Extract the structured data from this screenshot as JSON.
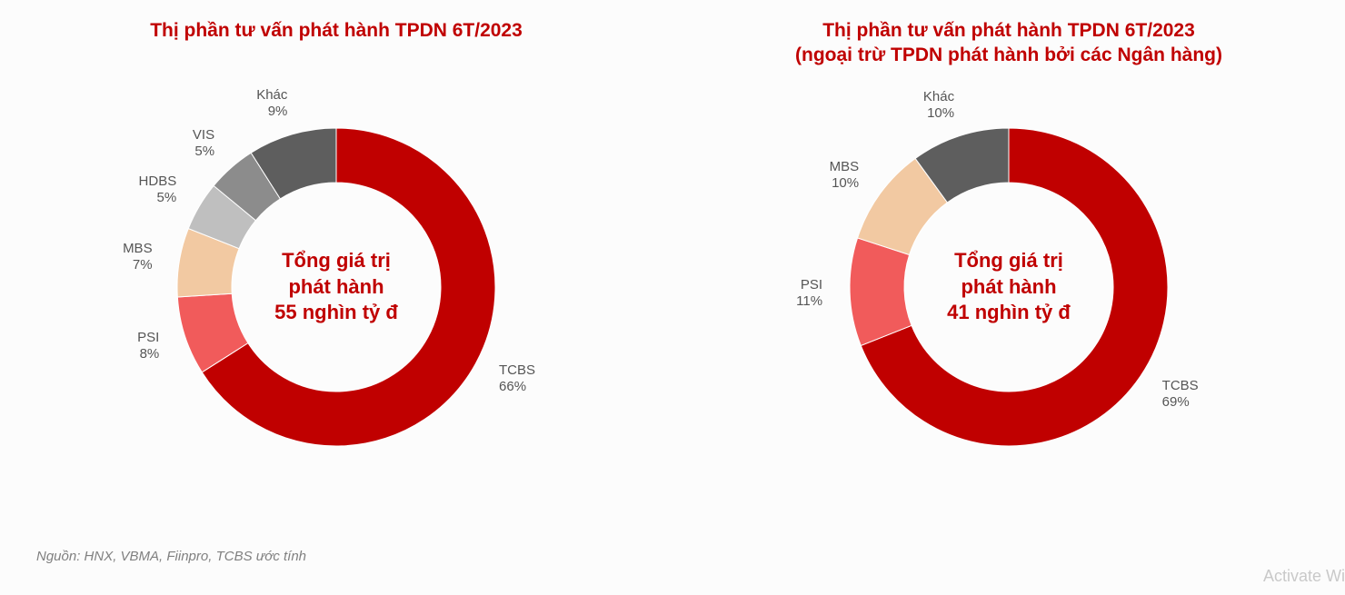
{
  "background_color": "#fcfcfc",
  "accent_color": "#c00000",
  "text_color": "#555555",
  "source_note": "Nguồn: HNX, VBMA, Fiinpro, TCBS ước tính",
  "watermark": "Activate Wi",
  "donut": {
    "outer_radius": 175,
    "inner_radius": 115,
    "start_angle_deg": 0
  },
  "chart_left": {
    "title_line1": "Thị phần tư vấn phát hành TPDN 6T/2023",
    "title_line2": "",
    "center_line1": "Tổng giá trị",
    "center_line2": "phát hành",
    "center_line3": "55 nghìn tỷ đ",
    "type": "donut",
    "slices": [
      {
        "name": "TCBS",
        "value": 66,
        "color": "#c00000",
        "label": "TCBS\n66%",
        "label_pos": "right-low"
      },
      {
        "name": "PSI",
        "value": 8,
        "color": "#f15b5b",
        "label": "PSI\n8%",
        "label_pos": "left-low"
      },
      {
        "name": "MBS",
        "value": 7,
        "color": "#f2c9a2",
        "label": "MBS\n7%",
        "label_pos": "left-mid"
      },
      {
        "name": "HDBS",
        "value": 5,
        "color": "#bfbfbf",
        "label": "HDBS\n5%",
        "label_pos": "left-high"
      },
      {
        "name": "VIS",
        "value": 5,
        "color": "#8c8c8c",
        "label": "VIS\n5%",
        "label_pos": "top-left"
      },
      {
        "name": "Khác",
        "value": 9,
        "color": "#5e5e5e",
        "label": "Khác\n9%",
        "label_pos": "top"
      }
    ]
  },
  "chart_right": {
    "title_line1": "Thị phần tư vấn phát hành TPDN 6T/2023",
    "title_line2": "(ngoại trừ TPDN phát hành bởi các Ngân hàng)",
    "center_line1": "Tổng giá trị",
    "center_line2": "phát hành",
    "center_line3": "41 nghìn tỷ đ",
    "type": "donut",
    "slices": [
      {
        "name": "TCBS",
        "value": 69,
        "color": "#c00000",
        "label": "TCBS\n69%",
        "label_pos": "right-low"
      },
      {
        "name": "PSI",
        "value": 11,
        "color": "#f15b5b",
        "label": "PSI\n11%",
        "label_pos": "left-mid"
      },
      {
        "name": "MBS",
        "value": 10,
        "color": "#f2c9a2",
        "label": "MBS\n10%",
        "label_pos": "left-high"
      },
      {
        "name": "Khác",
        "value": 10,
        "color": "#5e5e5e",
        "label": "Khác\n10%",
        "label_pos": "top"
      }
    ]
  }
}
